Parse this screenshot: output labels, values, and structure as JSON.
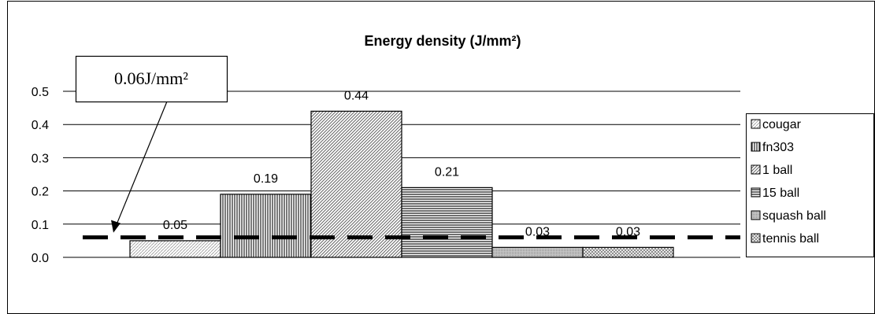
{
  "chart_data": {
    "type": "bar",
    "title": "Energy density (J/mm²)",
    "xlabel": "",
    "ylabel": "",
    "ylim": [
      0,
      0.5
    ],
    "yticks": [
      "0.0",
      "0.1",
      "0.2",
      "0.3",
      "0.4",
      "0.5"
    ],
    "grid": true,
    "legend": "right",
    "series": [
      {
        "name": "cougar",
        "value": 0.05,
        "label": "0.05",
        "pattern": "pat-dots"
      },
      {
        "name": "fn303",
        "value": 0.19,
        "label": "0.19",
        "pattern": "pat-vert"
      },
      {
        "name": "1 ball",
        "value": 0.44,
        "label": "0.44",
        "pattern": "pat-diag"
      },
      {
        "name": "15 ball",
        "value": 0.21,
        "label": "0.21",
        "pattern": "pat-horiz"
      },
      {
        "name": "squash ball",
        "value": 0.03,
        "label": "0.03",
        "pattern": "pat-fine"
      },
      {
        "name": "tennis ball",
        "value": 0.03,
        "label": "0.03",
        "pattern": "pat-check"
      }
    ],
    "reference_line": {
      "value": 0.06,
      "label": "0.06J/mm²",
      "style": "dashed"
    }
  }
}
